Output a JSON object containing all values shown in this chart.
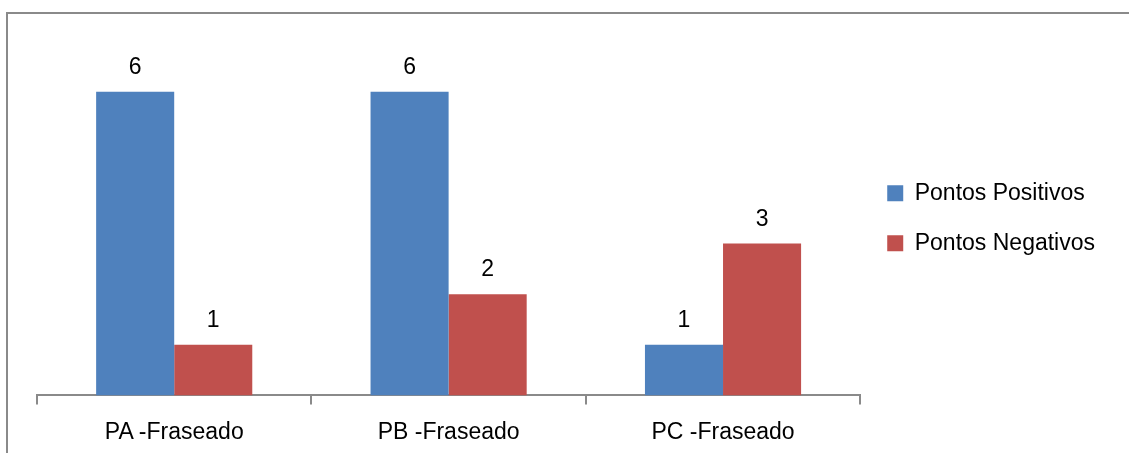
{
  "chart_data": {
    "type": "bar",
    "categories": [
      "PA -Fraseado",
      "PB -Fraseado",
      "PC -Fraseado"
    ],
    "series": [
      {
        "name": "Pontos Positivos",
        "color": "#4f81bd",
        "values": [
          6,
          6,
          1
        ]
      },
      {
        "name": "Pontos Negativos",
        "color": "#c0504d",
        "values": [
          1,
          2,
          3
        ]
      }
    ],
    "data_labels": true,
    "legend": "right",
    "grid": false,
    "tick_labels": "x"
  }
}
